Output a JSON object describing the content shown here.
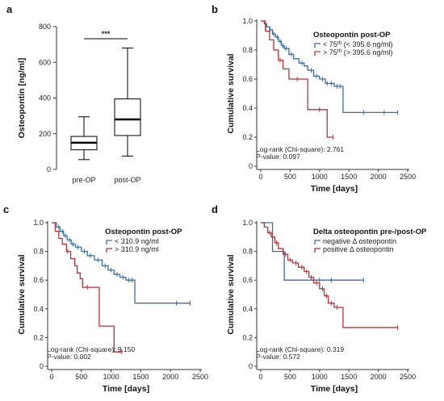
{
  "colors": {
    "blue": "#3a6ea5",
    "red": "#b0333a",
    "axis": "#333333"
  },
  "chart_data": [
    {
      "panel": "a",
      "type": "boxplot",
      "ylabel": "Osteopontin [ng/ml]",
      "ylim": [
        0,
        800
      ],
      "yticks": [
        0,
        200,
        400,
        600,
        800
      ],
      "categories": [
        "pre-OP",
        "post-OP"
      ],
      "boxes": [
        {
          "name": "pre-OP",
          "min": 55,
          "q1": 110,
          "median": 150,
          "q3": 185,
          "max": 295
        },
        {
          "name": "post-OP",
          "min": 75,
          "q1": 190,
          "median": 280,
          "q3": 395,
          "max": 680
        }
      ],
      "significance": "***"
    },
    {
      "panel": "b",
      "type": "line",
      "step": true,
      "xlabel": "Time [days]",
      "ylabel": "Cumulative survival",
      "xlim": [
        0,
        2500
      ],
      "ylim": [
        0,
        1.0
      ],
      "xticks": [
        0,
        500,
        1000,
        1500,
        2000,
        2500
      ],
      "yticks": [
        0,
        0.2,
        0.4,
        0.6,
        0.8,
        1.0
      ],
      "legend_title": "Osteopontin  post-OP",
      "legend": [
        {
          "prefix": "< 75",
          "sup": "th",
          "suffix": " (< 395.6 ng/ml)"
        },
        {
          "prefix": "> 75",
          "sup": "th",
          "suffix": " (> 395.6 ng/ml)"
        }
      ],
      "legend_position": "top-right",
      "stats": [
        "Log-rank (Chi-square): 2.761",
        "P-value: 0.097"
      ],
      "series": [
        {
          "color_key": "blue",
          "points": [
            [
              0,
              1.0
            ],
            [
              60,
              0.98
            ],
            [
              100,
              0.96
            ],
            [
              150,
              0.94
            ],
            [
              200,
              0.91
            ],
            [
              250,
              0.89
            ],
            [
              300,
              0.86
            ],
            [
              350,
              0.83
            ],
            [
              400,
              0.81
            ],
            [
              480,
              0.77
            ],
            [
              560,
              0.74
            ],
            [
              650,
              0.71
            ],
            [
              740,
              0.69
            ],
            [
              800,
              0.66
            ],
            [
              900,
              0.62
            ],
            [
              1000,
              0.6
            ],
            [
              1100,
              0.57
            ],
            [
              1250,
              0.55
            ],
            [
              1400,
              0.37
            ],
            [
              2330,
              0.37
            ]
          ],
          "censored": [
            [
              90,
              0.96
            ],
            [
              160,
              0.94
            ],
            [
              220,
              0.91
            ],
            [
              280,
              0.89
            ],
            [
              330,
              0.86
            ],
            [
              380,
              0.83
            ],
            [
              430,
              0.81
            ],
            [
              520,
              0.77
            ],
            [
              700,
              0.71
            ],
            [
              860,
              0.66
            ],
            [
              950,
              0.62
            ],
            [
              1050,
              0.6
            ],
            [
              1130,
              0.57
            ],
            [
              1200,
              0.57
            ],
            [
              1300,
              0.55
            ],
            [
              1350,
              0.55
            ],
            [
              1750,
              0.37
            ],
            [
              2100,
              0.37
            ],
            [
              2330,
              0.37
            ]
          ]
        },
        {
          "color_key": "red",
          "points": [
            [
              0,
              1.0
            ],
            [
              80,
              0.93
            ],
            [
              150,
              0.87
            ],
            [
              220,
              0.8
            ],
            [
              300,
              0.73
            ],
            [
              380,
              0.67
            ],
            [
              480,
              0.6
            ],
            [
              800,
              0.6
            ],
            [
              800,
              0.39
            ],
            [
              1130,
              0.39
            ],
            [
              1130,
              0.2
            ],
            [
              1230,
              0.2
            ]
          ],
          "censored": [
            [
              330,
              0.73
            ],
            [
              620,
              0.6
            ],
            [
              1000,
              0.39
            ],
            [
              1230,
              0.2
            ]
          ]
        }
      ]
    },
    {
      "panel": "c",
      "type": "line",
      "step": true,
      "xlabel": "Time [days]",
      "ylabel": "Cumulative survival",
      "xlim": [
        0,
        2500
      ],
      "ylim": [
        0,
        1.0
      ],
      "xticks": [
        0,
        500,
        1000,
        1500,
        2000,
        2500
      ],
      "yticks": [
        0,
        0.2,
        0.4,
        0.6,
        0.8,
        1.0
      ],
      "legend_title": "Osteopontin  post-OP",
      "legend": [
        {
          "prefix": "< 310.9 ng/ml",
          "sup": "",
          "suffix": ""
        },
        {
          "prefix": "> 310.9 ng/ml",
          "sup": "",
          "suffix": ""
        }
      ],
      "legend_position": "top-right",
      "stats": [
        "Log-rank (Chi-square): 9.150",
        "P-value: 0.002"
      ],
      "series": [
        {
          "color_key": "blue",
          "points": [
            [
              0,
              1.0
            ],
            [
              80,
              0.97
            ],
            [
              140,
              0.94
            ],
            [
              200,
              0.91
            ],
            [
              260,
              0.88
            ],
            [
              330,
              0.85
            ],
            [
              400,
              0.83
            ],
            [
              500,
              0.8
            ],
            [
              600,
              0.77
            ],
            [
              720,
              0.74
            ],
            [
              850,
              0.7
            ],
            [
              950,
              0.67
            ],
            [
              1050,
              0.64
            ],
            [
              1150,
              0.62
            ],
            [
              1250,
              0.6
            ],
            [
              1400,
              0.44
            ],
            [
              2330,
              0.44
            ]
          ],
          "censored": [
            [
              120,
              0.97
            ],
            [
              180,
              0.94
            ],
            [
              230,
              0.91
            ],
            [
              300,
              0.88
            ],
            [
              360,
              0.85
            ],
            [
              440,
              0.83
            ],
            [
              550,
              0.8
            ],
            [
              650,
              0.77
            ],
            [
              780,
              0.74
            ],
            [
              900,
              0.7
            ],
            [
              1000,
              0.67
            ],
            [
              1100,
              0.64
            ],
            [
              1200,
              0.62
            ],
            [
              1300,
              0.6
            ],
            [
              1350,
              0.6
            ],
            [
              2100,
              0.44
            ],
            [
              2330,
              0.44
            ]
          ]
        },
        {
          "color_key": "red",
          "points": [
            [
              0,
              1.0
            ],
            [
              60,
              0.94
            ],
            [
              120,
              0.89
            ],
            [
              180,
              0.85
            ],
            [
              250,
              0.8
            ],
            [
              320,
              0.75
            ],
            [
              390,
              0.7
            ],
            [
              430,
              0.65
            ],
            [
              480,
              0.61
            ],
            [
              520,
              0.55
            ],
            [
              760,
              0.55
            ],
            [
              800,
              0.28
            ],
            [
              1050,
              0.28
            ],
            [
              1050,
              0.1
            ],
            [
              1180,
              0.1
            ]
          ],
          "censored": [
            [
              270,
              0.8
            ],
            [
              600,
              0.55
            ],
            [
              1180,
              0.1
            ]
          ]
        }
      ]
    },
    {
      "panel": "d",
      "type": "line",
      "step": true,
      "xlabel": "Time [days]",
      "ylabel": "Cumulative survival",
      "xlim": [
        0,
        2500
      ],
      "ylim": [
        0,
        1.0
      ],
      "xticks": [
        0,
        500,
        1000,
        1500,
        2000,
        2500
      ],
      "yticks": [
        0,
        0.2,
        0.4,
        0.6,
        0.8,
        1.0
      ],
      "legend_title": "Delta osteopontin  pre-/post-OP",
      "legend": [
        {
          "prefix": "negative  Δ osteopontin",
          "sup": "",
          "suffix": ""
        },
        {
          "prefix": "positive  Δ osteopontin",
          "sup": "",
          "suffix": ""
        }
      ],
      "legend_position": "top-right",
      "stats": [
        "Log-rank (Chi-square): 0.319",
        "P-value: 0.572"
      ],
      "series": [
        {
          "color_key": "blue",
          "points": [
            [
              0,
              1.0
            ],
            [
              200,
              1.0
            ],
            [
              200,
              0.8
            ],
            [
              400,
              0.8
            ],
            [
              400,
              0.6
            ],
            [
              1750,
              0.6
            ]
          ],
          "censored": [
            [
              1000,
              0.6
            ],
            [
              1200,
              0.6
            ],
            [
              1750,
              0.6
            ]
          ]
        },
        {
          "color_key": "red",
          "points": [
            [
              0,
              1.0
            ],
            [
              60,
              0.97
            ],
            [
              120,
              0.93
            ],
            [
              180,
              0.9
            ],
            [
              240,
              0.86
            ],
            [
              300,
              0.82
            ],
            [
              380,
              0.78
            ],
            [
              460,
              0.74
            ],
            [
              540,
              0.72
            ],
            [
              640,
              0.69
            ],
            [
              740,
              0.66
            ],
            [
              820,
              0.62
            ],
            [
              900,
              0.58
            ],
            [
              1000,
              0.54
            ],
            [
              1080,
              0.49
            ],
            [
              1150,
              0.44
            ],
            [
              1250,
              0.41
            ],
            [
              1400,
              0.27
            ],
            [
              2330,
              0.27
            ]
          ],
          "censored": [
            [
              150,
              0.93
            ],
            [
              270,
              0.86
            ],
            [
              420,
              0.78
            ],
            [
              500,
              0.74
            ],
            [
              600,
              0.72
            ],
            [
              700,
              0.69
            ],
            [
              780,
              0.66
            ],
            [
              860,
              0.62
            ],
            [
              950,
              0.58
            ],
            [
              1050,
              0.54
            ],
            [
              1120,
              0.49
            ],
            [
              1200,
              0.44
            ],
            [
              1300,
              0.41
            ],
            [
              2330,
              0.27
            ]
          ]
        }
      ]
    }
  ]
}
